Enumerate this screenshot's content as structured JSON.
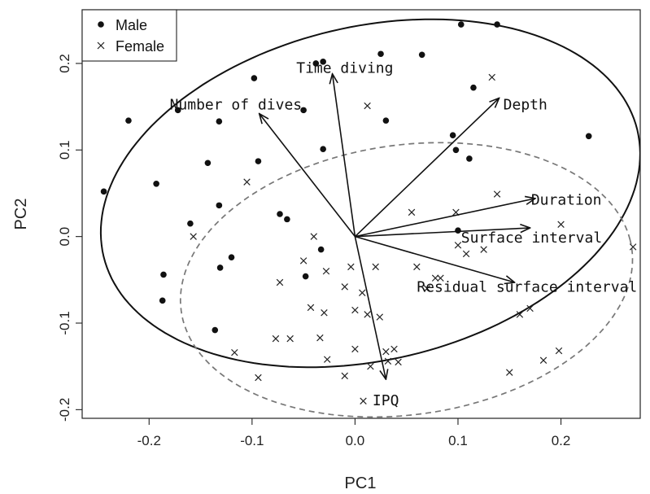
{
  "chart_data": {
    "type": "scatter",
    "xlabel": "PC1",
    "ylabel": "PC2",
    "xlim": [
      -0.265,
      0.277
    ],
    "ylim": [
      -0.21,
      0.262
    ],
    "xticks": [
      -0.2,
      -0.1,
      0.0,
      0.1,
      0.2
    ],
    "yticks": [
      -0.2,
      -0.1,
      0.0,
      0.1,
      0.2
    ],
    "xtick_labels": [
      "-0.2",
      "-0.1",
      "0.0",
      "0.1",
      "0.2"
    ],
    "ytick_labels": [
      "-0.2",
      "-0.1",
      "0.0",
      "0.1",
      "0.2"
    ],
    "grid": false,
    "legend": {
      "position": "top-left",
      "entries": [
        {
          "label": "Male",
          "marker": "dot"
        },
        {
          "label": "Female",
          "marker": "x"
        }
      ]
    },
    "series": [
      {
        "name": "Male",
        "marker": "dot",
        "points": [
          [
            -0.244,
            0.052
          ],
          [
            -0.22,
            0.134
          ],
          [
            -0.193,
            0.061
          ],
          [
            -0.186,
            -0.044
          ],
          [
            -0.187,
            -0.074
          ],
          [
            -0.172,
            0.146
          ],
          [
            -0.16,
            0.015
          ],
          [
            -0.143,
            0.085
          ],
          [
            -0.136,
            -0.108
          ],
          [
            -0.132,
            0.133
          ],
          [
            -0.132,
            0.036
          ],
          [
            -0.131,
            -0.036
          ],
          [
            -0.12,
            -0.024
          ],
          [
            -0.098,
            0.183
          ],
          [
            -0.094,
            0.087
          ],
          [
            -0.073,
            0.026
          ],
          [
            -0.066,
            0.02
          ],
          [
            -0.048,
            -0.046
          ],
          [
            -0.05,
            0.146
          ],
          [
            -0.038,
            0.2
          ],
          [
            -0.031,
            0.202
          ],
          [
            -0.031,
            0.101
          ],
          [
            -0.033,
            -0.015
          ],
          [
            0.025,
            0.211
          ],
          [
            0.03,
            0.134
          ],
          [
            0.065,
            0.21
          ],
          [
            0.095,
            0.117
          ],
          [
            0.098,
            0.1
          ],
          [
            0.103,
            0.245
          ],
          [
            0.111,
            0.09
          ],
          [
            0.115,
            0.172
          ],
          [
            0.138,
            0.245
          ],
          [
            0.1,
            0.007
          ],
          [
            0.227,
            0.116
          ]
        ]
      },
      {
        "name": "Female",
        "marker": "x",
        "points": [
          [
            -0.157,
            0.0
          ],
          [
            -0.117,
            -0.134
          ],
          [
            -0.105,
            0.063
          ],
          [
            -0.094,
            -0.163
          ],
          [
            -0.073,
            -0.053
          ],
          [
            -0.077,
            -0.118
          ],
          [
            -0.063,
            -0.118
          ],
          [
            -0.05,
            -0.028
          ],
          [
            -0.043,
            -0.082
          ],
          [
            -0.04,
            0.0
          ],
          [
            -0.034,
            -0.117
          ],
          [
            -0.03,
            -0.088
          ],
          [
            -0.028,
            -0.04
          ],
          [
            -0.027,
            -0.142
          ],
          [
            -0.01,
            -0.058
          ],
          [
            -0.01,
            -0.161
          ],
          [
            -0.004,
            -0.035
          ],
          [
            0.0,
            -0.13
          ],
          [
            0.0,
            -0.085
          ],
          [
            0.007,
            -0.065
          ],
          [
            0.008,
            -0.19
          ],
          [
            0.012,
            0.151
          ],
          [
            0.012,
            -0.09
          ],
          [
            0.015,
            -0.15
          ],
          [
            0.02,
            -0.035
          ],
          [
            0.024,
            -0.093
          ],
          [
            0.03,
            -0.133
          ],
          [
            0.032,
            -0.144
          ],
          [
            0.038,
            -0.13
          ],
          [
            0.042,
            -0.145
          ],
          [
            0.055,
            0.028
          ],
          [
            0.06,
            -0.035
          ],
          [
            0.07,
            -0.06
          ],
          [
            0.078,
            -0.048
          ],
          [
            0.083,
            -0.048
          ],
          [
            0.098,
            0.028
          ],
          [
            0.1,
            -0.01
          ],
          [
            0.108,
            -0.02
          ],
          [
            0.125,
            -0.015
          ],
          [
            0.133,
            0.184
          ],
          [
            0.138,
            0.049
          ],
          [
            0.15,
            -0.157
          ],
          [
            0.16,
            -0.09
          ],
          [
            0.17,
            -0.083
          ],
          [
            0.183,
            -0.143
          ],
          [
            0.198,
            -0.132
          ],
          [
            0.2,
            0.014
          ],
          [
            0.27,
            -0.012
          ]
        ]
      }
    ],
    "vectors": [
      {
        "label": "Time diving",
        "end": [
          -0.022,
          0.188
        ],
        "label_pos": [
          -0.057,
          0.189
        ]
      },
      {
        "label": "Number of dives",
        "end": [
          -0.093,
          0.142
        ],
        "label_pos": [
          -0.18,
          0.147
        ]
      },
      {
        "label": "Depth",
        "end": [
          0.14,
          0.16
        ],
        "label_pos": [
          0.144,
          0.147
        ]
      },
      {
        "label": "Duration",
        "end": [
          0.175,
          0.044
        ],
        "label_pos": [
          0.171,
          0.037
        ]
      },
      {
        "label": "Surface interval",
        "end": [
          0.17,
          0.01
        ],
        "label_pos": [
          0.103,
          -0.007
        ]
      },
      {
        "label": "Residual surface interval",
        "end": [
          0.155,
          -0.053
        ],
        "label_pos": [
          0.06,
          -0.064
        ]
      },
      {
        "label": "IPQ",
        "end": [
          0.03,
          -0.165
        ],
        "label_pos": [
          0.017,
          -0.195
        ]
      }
    ],
    "ellipses": [
      {
        "group": "Male",
        "style": "solid",
        "cx": 0.015,
        "cy": 0.05,
        "rx": 0.27,
        "ry": 0.19,
        "angle_deg": 20
      },
      {
        "group": "Female",
        "style": "dashed",
        "cx": 0.05,
        "cy": -0.05,
        "rx": 0.222,
        "ry": 0.155,
        "angle_deg": 12
      }
    ]
  }
}
